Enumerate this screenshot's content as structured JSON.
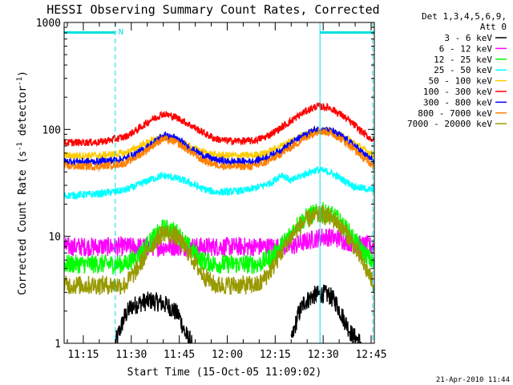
{
  "chart_data": {
    "type": "line",
    "title": "HESSI Observing Summary Count Rates, Corrected",
    "xlabel": "Start Time (15-Oct-05 11:09:02)",
    "ylabel": "Corrected Count Rate (s",
    "ylabel_sup1": "-1",
    "ylabel_mid": " detector",
    "ylabel_sup2": "-1",
    "ylabel_end": ")",
    "yscale": "log",
    "ylim": [
      1,
      1000
    ],
    "xlim": [
      669,
      766
    ],
    "x_tick_labels": [
      "11:15",
      "11:30",
      "11:45",
      "12:00",
      "12:15",
      "12:30",
      "12:45"
    ],
    "x_ticks": [
      675,
      690,
      705,
      720,
      735,
      750,
      765
    ],
    "y_tick_labels": [
      "1",
      "10",
      "100",
      "1000"
    ],
    "y_ticks": [
      1,
      10,
      100,
      1000
    ],
    "legend_header": [
      "Det 1,3,4,5,6,9,",
      "Att 0"
    ],
    "legend_placement": "right",
    "series": [
      {
        "name": "3 - 6 keV",
        "color": "#000000",
        "x": [
          669,
          683,
          685,
          688,
          690,
          693,
          696,
          699,
          702,
          705,
          707,
          709,
          711,
          714,
          738,
          740,
          742,
          744,
          747,
          750,
          752,
          754,
          756,
          759,
          762,
          766
        ],
        "y": [
          null,
          null,
          1,
          1.8,
          2.2,
          2.4,
          2.5,
          2.4,
          2.2,
          1.8,
          1.2,
          1,
          null,
          null,
          null,
          1,
          1.8,
          2.4,
          2.8,
          2.9,
          2.8,
          2.4,
          1.8,
          1.2,
          1,
          null
        ]
      },
      {
        "name": "6 - 12 keV",
        "color": "#ff00ff",
        "x": [
          669,
          680,
          690,
          700,
          710,
          720,
          730,
          740,
          745,
          750,
          755,
          760,
          766
        ],
        "y": [
          8,
          8,
          8,
          8,
          8,
          8,
          8,
          8,
          9,
          10,
          9.5,
          8.5,
          8
        ]
      },
      {
        "name": "12 - 25 keV",
        "color": "#00ff00",
        "x": [
          669,
          680,
          688,
          692,
          696,
          700,
          704,
          708,
          712,
          716,
          730,
          734,
          738,
          742,
          746,
          750,
          754,
          758,
          762,
          766
        ],
        "y": [
          5.5,
          5.5,
          5.5,
          6.5,
          9,
          12,
          11,
          8,
          6,
          5.5,
          5.5,
          6.5,
          9,
          13,
          16,
          17,
          15,
          11,
          7.5,
          5.5
        ]
      },
      {
        "name": "25 - 50 keV",
        "color": "#00ffff",
        "x": [
          669,
          680,
          688,
          692,
          696,
          700,
          704,
          708,
          712,
          716,
          720,
          726,
          730,
          734,
          737,
          740,
          744,
          748,
          752,
          756,
          760,
          766
        ],
        "y": [
          24,
          25,
          27,
          30,
          34,
          37,
          35,
          32,
          28,
          26,
          26,
          27,
          29,
          32,
          38,
          33,
          38,
          42,
          40,
          34,
          29,
          27
        ]
      },
      {
        "name": "50 - 100 keV",
        "color": "#ffcc00",
        "x": [
          669,
          680,
          688,
          692,
          696,
          700,
          704,
          708,
          712,
          716,
          720,
          728,
          732,
          736,
          740,
          744,
          748,
          752,
          756,
          760,
          763,
          766
        ],
        "y": [
          57,
          57,
          60,
          68,
          78,
          84,
          80,
          70,
          62,
          58,
          57,
          57,
          60,
          68,
          78,
          90,
          98,
          96,
          86,
          74,
          64,
          58
        ]
      },
      {
        "name": "100 - 300 keV",
        "color": "#ff0000",
        "x": [
          669,
          680,
          688,
          692,
          696,
          700,
          704,
          708,
          712,
          716,
          720,
          728,
          732,
          736,
          740,
          744,
          748,
          752,
          756,
          760,
          763,
          766
        ],
        "y": [
          75,
          76,
          85,
          100,
          122,
          140,
          130,
          112,
          95,
          82,
          78,
          78,
          85,
          100,
          120,
          145,
          165,
          160,
          135,
          108,
          90,
          78
        ]
      },
      {
        "name": "300 - 800 keV",
        "color": "#0000ff",
        "x": [
          669,
          680,
          688,
          692,
          696,
          700,
          704,
          708,
          712,
          716,
          720,
          728,
          732,
          736,
          740,
          744,
          748,
          752,
          756,
          760,
          763,
          766
        ],
        "y": [
          50,
          50,
          53,
          60,
          72,
          88,
          82,
          68,
          58,
          52,
          50,
          50,
          54,
          62,
          74,
          88,
          100,
          98,
          85,
          70,
          58,
          50
        ]
      },
      {
        "name": "800 - 7000 keV",
        "color": "#ff8000",
        "x": [
          669,
          680,
          688,
          692,
          696,
          700,
          704,
          708,
          712,
          716,
          720,
          728,
          732,
          736,
          740,
          744,
          748,
          752,
          756,
          760,
          763,
          766
        ],
        "y": [
          45,
          45,
          48,
          56,
          68,
          82,
          76,
          63,
          52,
          47,
          45,
          45,
          49,
          57,
          68,
          82,
          96,
          94,
          80,
          64,
          53,
          45
        ]
      },
      {
        "name": "7000 - 20000 keV",
        "color": "#999900",
        "x": [
          669,
          680,
          688,
          692,
          696,
          700,
          704,
          708,
          712,
          716,
          730,
          734,
          738,
          742,
          746,
          750,
          754,
          758,
          762,
          766
        ],
        "y": [
          3.5,
          3.5,
          3.5,
          5,
          8,
          11,
          10,
          7,
          4.5,
          3.5,
          3.5,
          5,
          8,
          12,
          15,
          16,
          14,
          10,
          6,
          3.5
        ]
      }
    ],
    "flags": [
      {
        "start": 669,
        "end": 685,
        "label": ""
      },
      {
        "start": 685,
        "end": 686,
        "label": "N"
      },
      {
        "start": 749,
        "end": 766,
        "label": ""
      }
    ],
    "vertical_markers": [
      {
        "x": 669,
        "style": "solid"
      },
      {
        "x": 685,
        "style": "dashed"
      },
      {
        "x": 749,
        "style": "solid"
      },
      {
        "x": 765.5,
        "style": "dashed"
      }
    ],
    "footer_date": "21-Apr-2010 11:44"
  }
}
